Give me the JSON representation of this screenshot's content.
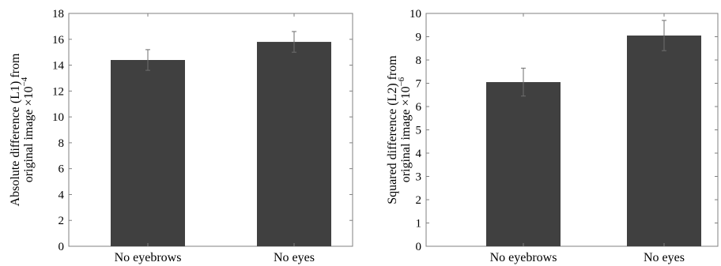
{
  "chart_data": [
    {
      "type": "bar",
      "categories": [
        "No eyebrows",
        "No eyes"
      ],
      "values": [
        14.4,
        15.8
      ],
      "error": [
        0.8,
        0.8
      ],
      "ylabel_line1": "Absolute difference (L1) from",
      "ylabel_line2": "original image ×10",
      "ylabel_exp": "−4",
      "ylim": [
        0,
        18
      ],
      "yticks": [
        0,
        2,
        4,
        6,
        8,
        10,
        12,
        14,
        16,
        18
      ],
      "bar_color": "#404040",
      "grid": false
    },
    {
      "type": "bar",
      "categories": [
        "No eyebrows",
        "No eyes"
      ],
      "values": [
        7.05,
        9.05
      ],
      "error": [
        0.6,
        0.65
      ],
      "ylabel_line1": "Squared difference (L2) from",
      "ylabel_line2": "original image ×10",
      "ylabel_exp": "−6",
      "ylim": [
        0,
        10
      ],
      "yticks": [
        0,
        1,
        2,
        3,
        4,
        5,
        6,
        7,
        8,
        9,
        10
      ],
      "bar_color": "#404040",
      "grid": false
    }
  ]
}
